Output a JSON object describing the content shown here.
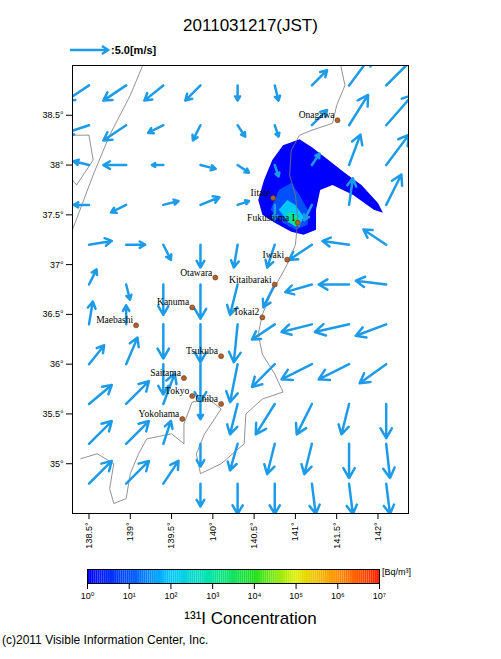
{
  "chart_data": {
    "type": "map",
    "title": "2011031217(JST)",
    "xlim": [
      138.3,
      142.37
    ],
    "ylim": [
      34.5,
      39.0
    ],
    "xticks": [
      {
        "value": 138.5,
        "label": "138.5°"
      },
      {
        "value": 139,
        "label": "139°"
      },
      {
        "value": 139.5,
        "label": "139.5°"
      },
      {
        "value": 140,
        "label": "140°"
      },
      {
        "value": 140.5,
        "label": "140.5°"
      },
      {
        "value": 141,
        "label": "141°"
      },
      {
        "value": 141.5,
        "label": "141.5°"
      },
      {
        "value": 142,
        "label": "142°"
      }
    ],
    "yticks": [
      {
        "value": 35,
        "label": "35°"
      },
      {
        "value": 35.5,
        "label": "35.5°"
      },
      {
        "value": 36,
        "label": "36°"
      },
      {
        "value": 36.5,
        "label": "36.5°"
      },
      {
        "value": 37,
        "label": "37°"
      },
      {
        "value": 37.5,
        "label": "37.5°"
      },
      {
        "value": 38,
        "label": "38°"
      },
      {
        "value": 38.5,
        "label": "38.5°"
      }
    ],
    "wind": {
      "legend_value": 5.0,
      "legend_label": ":5.0[m/s]",
      "color": "#1e9be8",
      "lon": [
        138.5,
        138.95,
        139.4,
        139.85,
        140.3,
        140.75,
        141.2,
        141.65,
        142.1
      ],
      "lat": [
        34.8,
        35.2,
        35.6,
        36.0,
        36.4,
        36.8,
        37.2,
        37.6,
        38.0,
        38.4,
        38.8
      ],
      "u": [
        [
          3,
          3,
          2,
          0,
          0,
          0,
          0.5,
          0.5,
          0.5
        ],
        [
          3,
          3,
          1,
          0,
          -1,
          -1,
          -1,
          0,
          0.5
        ],
        [
          3,
          3,
          1.5,
          0,
          -1,
          -2.5,
          -2,
          -1,
          0
        ],
        [
          2,
          1.5,
          0,
          0,
          -1,
          -3,
          -4,
          -4,
          -3.5
        ],
        [
          0.5,
          0,
          0,
          0,
          -0.5,
          -3,
          -4,
          -4.5,
          -4
        ],
        [
          1,
          0.5,
          0,
          0,
          -1,
          -1.5,
          -3.5,
          -4,
          -4
        ],
        [
          3,
          2.5,
          1,
          0,
          -0.5,
          -1,
          -3,
          -3.5,
          -3
        ],
        [
          -2,
          -2,
          2,
          2.5,
          1.5,
          0,
          -1,
          0.5,
          2
        ],
        [
          -2,
          -3,
          -1.5,
          2,
          1.5,
          0.5,
          1,
          1.5,
          3
        ],
        [
          -3,
          -3,
          -2,
          -1,
          1,
          0.5,
          2,
          2.5,
          3.5
        ],
        [
          -3,
          -3,
          -2.5,
          -2,
          0,
          0.5,
          2,
          3,
          4
        ]
      ],
      "v": [
        [
          3,
          3,
          3,
          -3,
          -4,
          -4,
          -4,
          -4,
          -4
        ],
        [
          3,
          3,
          3,
          -3,
          -3.5,
          -4,
          -4,
          -4.5,
          -4.5
        ],
        [
          2.5,
          3,
          4,
          -2,
          -4,
          -4,
          -4,
          -4,
          -4.5
        ],
        [
          2.5,
          3.5,
          -4,
          -5,
          -5,
          -3,
          -2,
          -2,
          -2.5
        ],
        [
          3,
          2.5,
          -4.5,
          -5,
          -5,
          -2,
          -1,
          -1,
          -1.5
        ],
        [
          2,
          -2,
          -4,
          -4.5,
          -4,
          -3,
          -1,
          0,
          0.5
        ],
        [
          0.5,
          0,
          -2,
          -3,
          -3,
          -3,
          -2,
          0.5,
          2
        ],
        [
          0,
          -1,
          0.5,
          1,
          0.5,
          -2,
          -2,
          3.5,
          4
        ],
        [
          0.5,
          0,
          0,
          -0.5,
          -1,
          -1.5,
          1.5,
          4,
          4
        ],
        [
          -1,
          -2,
          -1,
          -2,
          -1.5,
          -1.5,
          2,
          4,
          4
        ],
        [
          -2,
          -2,
          -2,
          -2,
          -2,
          -2,
          2,
          4,
          4
        ]
      ]
    },
    "concentration": [
      {
        "value": 1,
        "polygon": [
          [
            140.72,
            38.05
          ],
          [
            140.85,
            38.2
          ],
          [
            141.05,
            38.26
          ],
          [
            141.2,
            38.18
          ],
          [
            141.4,
            38.05
          ],
          [
            141.6,
            37.92
          ],
          [
            141.8,
            37.8
          ],
          [
            142.0,
            37.62
          ],
          [
            142.06,
            37.52
          ],
          [
            141.95,
            37.55
          ],
          [
            141.7,
            37.7
          ],
          [
            141.45,
            37.8
          ],
          [
            141.3,
            37.75
          ],
          [
            141.25,
            37.55
          ],
          [
            141.25,
            37.35
          ],
          [
            141.1,
            37.3
          ],
          [
            140.95,
            37.33
          ],
          [
            140.75,
            37.42
          ],
          [
            140.6,
            37.5
          ],
          [
            140.55,
            37.65
          ],
          [
            140.62,
            37.85
          ]
        ]
      },
      {
        "value": 10,
        "polygon": [
          [
            140.7,
            37.55
          ],
          [
            140.8,
            37.75
          ],
          [
            140.95,
            37.82
          ],
          [
            141.05,
            37.7
          ],
          [
            141.15,
            37.55
          ],
          [
            141.15,
            37.4
          ],
          [
            141.0,
            37.35
          ],
          [
            140.85,
            37.42
          ]
        ]
      },
      {
        "value": 100,
        "polygon": [
          [
            140.8,
            37.55
          ],
          [
            140.9,
            37.65
          ],
          [
            141.0,
            37.6
          ],
          [
            141.1,
            37.48
          ],
          [
            141.05,
            37.38
          ],
          [
            140.92,
            37.42
          ]
        ]
      },
      {
        "value": 1000,
        "polygon": [
          [
            140.88,
            37.52
          ],
          [
            140.98,
            37.52
          ],
          [
            141.06,
            37.44
          ],
          [
            141.0,
            37.38
          ],
          [
            140.92,
            37.43
          ]
        ]
      },
      {
        "value": 10000,
        "polygon": [
          [
            140.98,
            37.46
          ],
          [
            141.04,
            37.45
          ],
          [
            141.05,
            37.4
          ],
          [
            141.0,
            37.39
          ]
        ]
      }
    ],
    "colorbar": {
      "title": "¹³¹I Concentration",
      "unit": "[Bq/m³]",
      "range": [
        1,
        10000000
      ],
      "ticks": [
        {
          "value": 1,
          "label": "10⁰"
        },
        {
          "value": 10,
          "label": "10¹"
        },
        {
          "value": 100,
          "label": "10²"
        },
        {
          "value": 1000,
          "label": "10³"
        },
        {
          "value": 10000,
          "label": "10⁴"
        },
        {
          "value": 100000,
          "label": "10⁵"
        },
        {
          "value": 1000000,
          "label": "10⁶"
        },
        {
          "value": 10000000,
          "label": "10⁷"
        }
      ],
      "colors": [
        "#0000ff",
        "#0050ff",
        "#00c8ff",
        "#00e6a0",
        "#20e020",
        "#e0f000",
        "#ff9000",
        "#ff2000"
      ]
    },
    "cities": [
      {
        "name": "Onagawa",
        "lon": 141.51,
        "lat": 38.45
      },
      {
        "name": "Iitate",
        "lon": 140.73,
        "lat": 37.67
      },
      {
        "name": "Fukushima I",
        "lon": 141.03,
        "lat": 37.42
      },
      {
        "name": "Iwaki",
        "lon": 140.9,
        "lat": 37.05
      },
      {
        "name": "Otawara",
        "lon": 140.03,
        "lat": 36.87
      },
      {
        "name": "Kitaibaraki",
        "lon": 140.75,
        "lat": 36.8
      },
      {
        "name": "Kanuma",
        "lon": 139.75,
        "lat": 36.57
      },
      {
        "name": "Tokai2",
        "lon": 140.6,
        "lat": 36.47
      },
      {
        "name": "Maebashi",
        "lon": 139.07,
        "lat": 36.39
      },
      {
        "name": "Tsukuba",
        "lon": 140.1,
        "lat": 36.08
      },
      {
        "name": "Saitama",
        "lon": 139.65,
        "lat": 35.86
      },
      {
        "name": "Tokyo",
        "lon": 139.75,
        "lat": 35.68
      },
      {
        "name": "Chiba",
        "lon": 140.1,
        "lat": 35.6
      },
      {
        "name": "Yokohama",
        "lon": 139.63,
        "lat": 35.45
      }
    ],
    "coastline": [
      [
        [
          141.55,
          39.0
        ],
        [
          141.6,
          38.8
        ],
        [
          141.5,
          38.6
        ],
        [
          141.45,
          38.42
        ],
        [
          141.2,
          38.35
        ],
        [
          141.05,
          38.3
        ],
        [
          140.95,
          38.15
        ],
        [
          140.93,
          37.9
        ],
        [
          141.0,
          37.7
        ],
        [
          141.03,
          37.45
        ],
        [
          141.0,
          37.2
        ],
        [
          140.9,
          37.0
        ],
        [
          140.8,
          36.85
        ],
        [
          140.7,
          36.7
        ],
        [
          140.6,
          36.5
        ],
        [
          140.55,
          36.3
        ],
        [
          140.6,
          36.1
        ],
        [
          140.75,
          35.9
        ],
        [
          140.85,
          35.72
        ],
        [
          140.6,
          35.65
        ],
        [
          140.4,
          35.5
        ],
        [
          140.38,
          35.2
        ],
        [
          140.1,
          35.0
        ],
        [
          139.85,
          34.9
        ],
        [
          139.8,
          35.1
        ],
        [
          139.9,
          35.3
        ],
        [
          140.1,
          35.55
        ],
        [
          139.95,
          35.65
        ],
        [
          139.75,
          35.62
        ],
        [
          139.65,
          35.4
        ],
        [
          139.65,
          35.2
        ],
        [
          139.5,
          35.3
        ],
        [
          139.2,
          35.25
        ],
        [
          139.1,
          35.1
        ],
        [
          139.0,
          34.9
        ],
        [
          138.95,
          34.65
        ],
        [
          138.8,
          34.6
        ],
        [
          138.75,
          34.75
        ],
        [
          138.8,
          35.0
        ],
        [
          138.6,
          35.1
        ],
        [
          138.4,
          35.05
        ]
      ],
      [
        [
          139.15,
          39.0
        ],
        [
          139.0,
          38.7
        ],
        [
          138.75,
          38.3
        ],
        [
          138.55,
          37.9
        ],
        [
          138.3,
          37.35
        ]
      ],
      [
        [
          138.25,
          38.3
        ],
        [
          138.5,
          38.3
        ],
        [
          138.55,
          38.05
        ],
        [
          138.35,
          37.8
        ],
        [
          138.25,
          37.9
        ],
        [
          138.25,
          38.3
        ]
      ]
    ],
    "copyright": "(c)2011 Visible Information Center, Inc."
  }
}
